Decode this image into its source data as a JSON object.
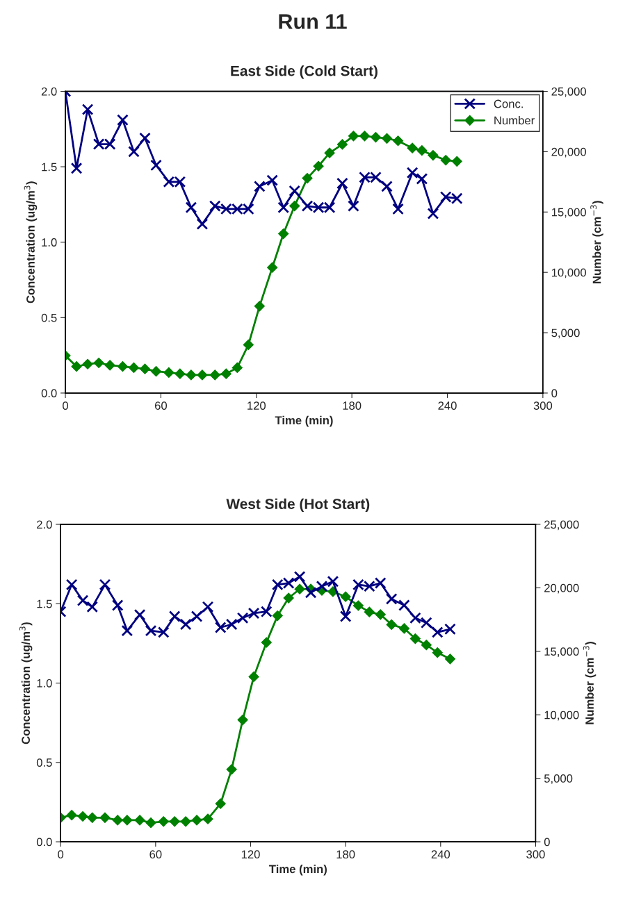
{
  "chart_data": [
    {
      "type": "line",
      "annotations": [
        "Run 11"
      ],
      "title": "East Side (Cold Start)",
      "xlabel": "Time (min)",
      "ylabel": "Concentration (ug/m$^{3}$)",
      "y2label": "Number (cm$^{−3}$)",
      "x": [
        0,
        7,
        14,
        21,
        28,
        36,
        43,
        50,
        57,
        65,
        72,
        79,
        86,
        94,
        101,
        108,
        115,
        122,
        130,
        137,
        144,
        152,
        159,
        166,
        174,
        181,
        188,
        195,
        202,
        209,
        218,
        224,
        231,
        239,
        246
      ],
      "series": [
        {
          "name": "Conc.",
          "color": "#000080",
          "marker": "cross",
          "values": [
            2.0,
            1.49,
            1.88,
            1.65,
            1.65,
            1.81,
            1.6,
            1.69,
            1.51,
            1.4,
            1.4,
            1.23,
            1.12,
            1.24,
            1.22,
            1.22,
            1.22,
            1.37,
            1.41,
            1.23,
            1.34,
            1.24,
            1.23,
            1.23,
            1.39,
            1.24,
            1.43,
            1.43,
            1.37,
            1.22,
            1.46,
            1.42,
            1.19,
            1.3,
            1.29
          ]
        },
        {
          "name": "Number",
          "color": "#008000",
          "marker": "diamond",
          "axis": "y2",
          "values": [
            3100,
            2200,
            2400,
            2500,
            2300,
            2200,
            2100,
            2000,
            1800,
            1700,
            1600,
            1500,
            1500,
            1500,
            1600,
            2100,
            4000,
            7200,
            10400,
            13200,
            15500,
            17800,
            18800,
            19900,
            20600,
            21300,
            21300,
            21200,
            21100,
            20900,
            20300,
            20100,
            19700,
            19300,
            19200
          ]
        }
      ],
      "xlim": [
        0,
        300
      ],
      "xticks": [
        0,
        60,
        120,
        180,
        240,
        300
      ],
      "ylim": [
        0,
        2.0
      ],
      "yticks": [
        {
          "value": 0,
          "label": "0.0"
        },
        {
          "value": 0.5,
          "label": "0.5"
        },
        {
          "value": 1,
          "label": "1.0"
        },
        {
          "value": 1.5,
          "label": "1.5"
        },
        {
          "value": 2,
          "label": "2.0"
        }
      ],
      "y2lim": [
        0,
        25000
      ],
      "y2ticks": [
        0,
        {
          "value": 5000,
          "label": "5,000"
        },
        {
          "value": 10000,
          "label": "10,000"
        },
        {
          "value": 15000,
          "label": "15,000"
        },
        {
          "value": 20000,
          "label": "20,000"
        },
        {
          "value": 25000,
          "label": "25,000"
        }
      ],
      "grid": false,
      "legend": "top right",
      "line_style": "solid"
    },
    {
      "type": "line",
      "title": "West Side (Hot Start)",
      "xlabel": "Time (min)",
      "ylabel": "Concentration (ug/m$^{3}$)",
      "y2label": "Number (cm$^{−3}$)",
      "x": [
        0,
        7,
        14,
        20,
        28,
        36,
        42,
        50,
        57,
        65,
        72,
        79,
        86,
        93,
        101,
        108,
        115,
        122,
        130,
        137,
        144,
        151,
        158,
        165,
        172,
        180,
        188,
        195,
        202,
        209,
        217,
        224,
        231,
        238,
        246
      ],
      "series": [
        {
          "color": "#000080",
          "marker": "cross",
          "values": [
            1.45,
            1.62,
            1.52,
            1.48,
            1.62,
            1.49,
            1.33,
            1.43,
            1.33,
            1.32,
            1.42,
            1.37,
            1.42,
            1.48,
            1.35,
            1.37,
            1.41,
            1.44,
            1.45,
            1.62,
            1.63,
            1.67,
            1.57,
            1.61,
            1.64,
            1.42,
            1.62,
            1.61,
            1.63,
            1.53,
            1.49,
            1.41,
            1.38,
            1.32,
            1.34
          ]
        },
        {
          "color": "#008000",
          "marker": "diamond",
          "axis": "y2",
          "values": [
            1900,
            2100,
            2000,
            1900,
            1900,
            1700,
            1700,
            1700,
            1500,
            1600,
            1600,
            1600,
            1700,
            1800,
            3000,
            5700,
            9600,
            13000,
            15700,
            17800,
            19200,
            19900,
            19900,
            19800,
            19700,
            19300,
            18600,
            18100,
            17900,
            17100,
            16800,
            16000,
            15500,
            14900,
            14400
          ]
        }
      ],
      "xlim": [
        0,
        300
      ],
      "xticks": [
        0,
        60,
        120,
        180,
        240,
        300
      ],
      "ylim": [
        0,
        2.0
      ],
      "yticks": [
        {
          "value": 0,
          "label": "0.0"
        },
        {
          "value": 0.5,
          "label": "0.5"
        },
        {
          "value": 1,
          "label": "1.0"
        },
        {
          "value": 1.5,
          "label": "1.5"
        },
        {
          "value": 2,
          "label": "2.0"
        }
      ],
      "y2lim": [
        0,
        25000
      ],
      "y2ticks": [
        0,
        {
          "value": 5000,
          "label": "5,000"
        },
        {
          "value": 10000,
          "label": "10,000"
        },
        {
          "value": 15000,
          "label": "15,000"
        },
        {
          "value": 20000,
          "label": "20,000"
        },
        {
          "value": 25000,
          "label": "25,000"
        }
      ],
      "grid": false,
      "legend": false,
      "line_style": "solid"
    }
  ]
}
